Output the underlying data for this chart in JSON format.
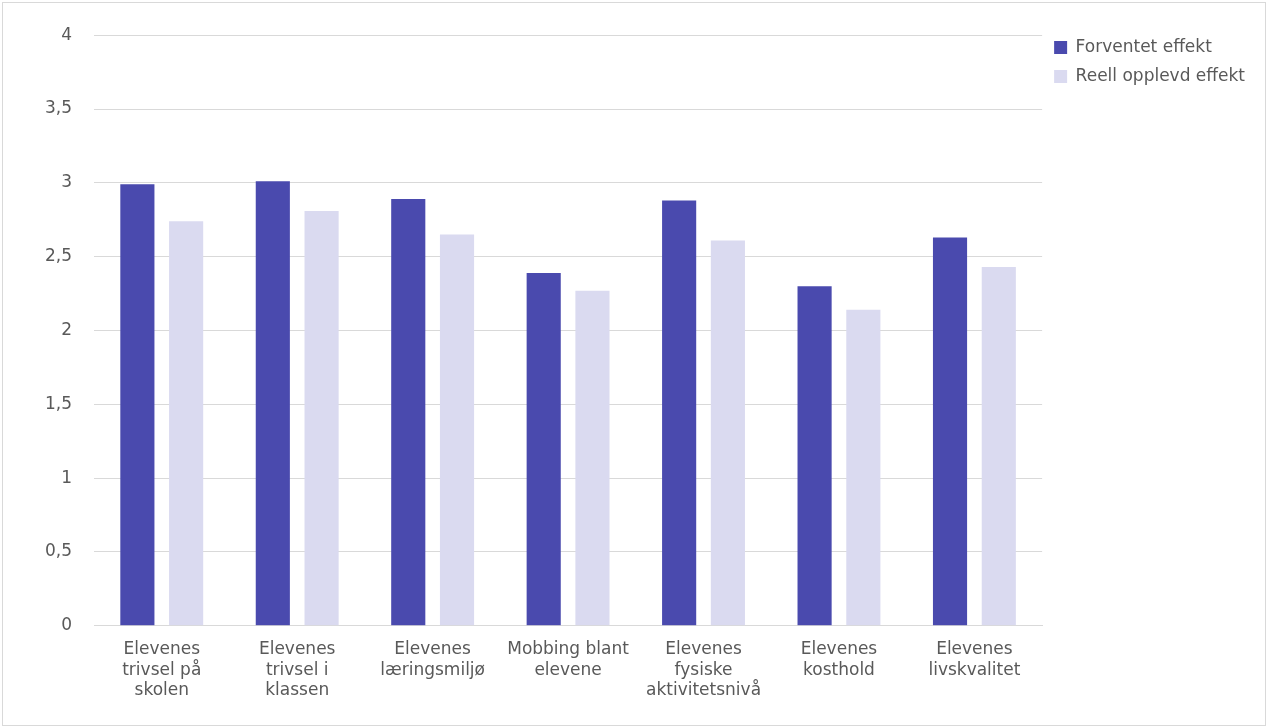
{
  "chart_data": {
    "type": "bar",
    "categories": [
      "Elevenes trivsel på skolen",
      "Elevenes trivsel i klassen",
      "Elevenes læringsmiljø",
      "Mobbing blant elevene",
      "Elevenes fysiske aktivitetsnivå",
      "Elevenes kosthold",
      "Elevenes livskvalitet"
    ],
    "series": [
      {
        "name": "Forventet effekt",
        "color": "#4a4aae",
        "values": [
          2.99,
          3.01,
          2.89,
          2.39,
          2.88,
          2.3,
          2.63
        ]
      },
      {
        "name": "Reell opplevd effekt",
        "color": "#dadaf0",
        "values": [
          2.74,
          2.81,
          2.65,
          2.27,
          2.61,
          2.14,
          2.43
        ]
      }
    ],
    "ylim": [
      0,
      4
    ],
    "yticks": [
      {
        "value": 0,
        "label": "0"
      },
      {
        "value": 0.5,
        "label": "0,5"
      },
      {
        "value": 1,
        "label": "1"
      },
      {
        "value": 1.5,
        "label": "1,5"
      },
      {
        "value": 2,
        "label": "2"
      },
      {
        "value": 2.5,
        "label": "2,5"
      },
      {
        "value": 3,
        "label": "3"
      },
      {
        "value": 3.5,
        "label": "3,5"
      },
      {
        "value": 4,
        "label": "4"
      }
    ],
    "grid": "y",
    "legend": "top right"
  }
}
